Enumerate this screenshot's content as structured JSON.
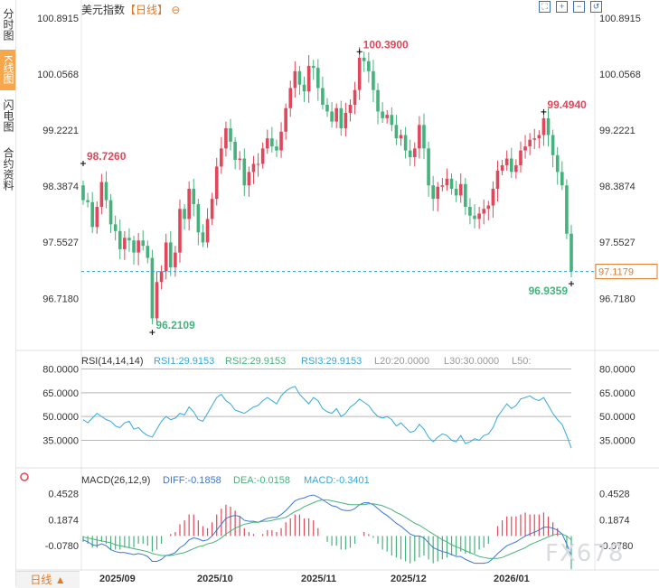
{
  "sidebar": {
    "tabs": [
      {
        "label": "分时图",
        "active": false
      },
      {
        "label": "K线图",
        "active": true
      },
      {
        "label": "闪电图",
        "active": false
      },
      {
        "label": "合约资料",
        "active": false
      }
    ]
  },
  "header": {
    "symbol": "美元指数",
    "period": "【日线】",
    "period_icon": "circle-minus-icon"
  },
  "tools": [
    "fit-icon",
    "zoom-in-icon",
    "zoom-out-icon",
    "restore-icon"
  ],
  "footer": {
    "period_button": "日线 ▲"
  },
  "watermark": "FX678",
  "colors": {
    "up": "#e0475a",
    "down": "#45b27c",
    "rsi": "#35a8dc",
    "diff": "#3a77d6",
    "dea": "#45b27c",
    "price_line": "#3a9ec9"
  },
  "chart_data": [
    {
      "type": "candlestick",
      "ylim": [
        96.2109,
        100.8915
      ],
      "yticks": [
        "100.8915",
        "100.0568",
        "99.2221",
        "98.3874",
        "97.5527",
        "96.7180"
      ],
      "xticks": [
        "2025/09",
        "2025/10",
        "2025/11",
        "2025/12",
        "2026/01"
      ],
      "annotations": {
        "high": "100.3900",
        "low": "96.2109",
        "start": "98.7260",
        "recent_high": "99.4940",
        "recent_low": "96.9359"
      },
      "last_price": "97.1179",
      "closes": [
        98.18,
        98.15,
        97.78,
        98.08,
        98.45,
        98.18,
        97.82,
        97.72,
        97.45,
        97.62,
        97.58,
        97.4,
        97.58,
        97.5,
        97.32,
        96.42,
        96.96,
        97.12,
        97.55,
        97.18,
        97.4,
        98.05,
        97.9,
        98.35,
        98.12,
        97.7,
        97.55,
        97.9,
        98.2,
        98.68,
        98.95,
        99.25,
        99.05,
        98.78,
        98.8,
        98.4,
        98.6,
        98.72,
        98.72,
        98.95,
        99.1,
        98.98,
        98.92,
        99.2,
        99.55,
        99.85,
        100.1,
        99.9,
        99.8,
        100.18,
        100.15,
        99.85,
        99.6,
        99.5,
        99.35,
        99.55,
        99.25,
        99.48,
        99.6,
        99.82,
        100.3,
        100.25,
        100.1,
        99.82,
        99.5,
        99.4,
        99.45,
        99.3,
        99.1,
        99.15,
        98.92,
        98.82,
        98.95,
        99.3,
        98.95,
        98.4,
        98.2,
        98.38,
        98.4,
        98.5,
        98.35,
        98.25,
        98.42,
        98.08,
        97.95,
        97.9,
        97.98,
        98.05,
        98.1,
        98.35,
        98.62,
        98.7,
        98.8,
        98.6,
        98.7,
        98.92,
        98.98,
        99.08,
        99.1,
        99.15,
        99.4,
        99.15,
        98.85,
        98.6,
        98.4,
        97.68,
        97.12
      ]
    },
    {
      "type": "line",
      "title": "RSI(14,14,14)",
      "legend": [
        "RSI1:29.9153",
        "RSI2:29.9153",
        "RSI3:29.9153",
        "L20:20.0000",
        "L30:30.0000",
        "L50:"
      ],
      "ylim": [
        25,
        82
      ],
      "yticks": [
        "80.0000",
        "65.0000",
        "50.0000",
        "35.0000"
      ],
      "series": [
        {
          "values": [
            48,
            46,
            49,
            52,
            50,
            48,
            47,
            44,
            43,
            46,
            47,
            42,
            43,
            40,
            38,
            37,
            42,
            47,
            50,
            48,
            49,
            52,
            51,
            56,
            53,
            48,
            47,
            52,
            57,
            62,
            64,
            60,
            58,
            54,
            53,
            52,
            54,
            56,
            57,
            60,
            62,
            60,
            58,
            63,
            66,
            68,
            69,
            64,
            61,
            58,
            62,
            60,
            55,
            53,
            52,
            55,
            50,
            52,
            56,
            58,
            61,
            59,
            57,
            53,
            50,
            49,
            50,
            48,
            44,
            46,
            43,
            40,
            41,
            45,
            42,
            37,
            34,
            37,
            39,
            38,
            35,
            34,
            38,
            33,
            34,
            36,
            35,
            38,
            39,
            43,
            50,
            54,
            58,
            55,
            57,
            61,
            62,
            63,
            61,
            60,
            62,
            57,
            52,
            48,
            45,
            38,
            30
          ]
        }
      ],
      "levels": [
        80,
        65,
        50,
        35
      ]
    },
    {
      "type": "line",
      "title": "MACD(26,12,9)",
      "legend": [
        "DIFF:-0.1858",
        "DEA:-0.0158",
        "MACD:-0.3401"
      ],
      "ylim": [
        -0.3,
        0.56
      ],
      "yticks": [
        "0.4528",
        "0.1874",
        "-0.0780"
      ],
      "series": [
        {
          "name": "DIFF",
          "values": [
            -0.02,
            -0.04,
            -0.07,
            -0.08,
            -0.06,
            -0.08,
            -0.12,
            -0.14,
            -0.15,
            -0.15,
            -0.16,
            -0.17,
            -0.16,
            -0.17,
            -0.19,
            -0.24,
            -0.24,
            -0.22,
            -0.18,
            -0.17,
            -0.15,
            -0.1,
            -0.07,
            -0.02,
            0.0,
            -0.01,
            -0.03,
            -0.02,
            0.02,
            0.08,
            0.14,
            0.2,
            0.22,
            0.23,
            0.22,
            0.18,
            0.17,
            0.17,
            0.16,
            0.18,
            0.2,
            0.21,
            0.21,
            0.24,
            0.28,
            0.33,
            0.38,
            0.4,
            0.41,
            0.43,
            0.44,
            0.42,
            0.39,
            0.36,
            0.33,
            0.32,
            0.29,
            0.28,
            0.28,
            0.3,
            0.34,
            0.36,
            0.36,
            0.34,
            0.3,
            0.26,
            0.23,
            0.19,
            0.15,
            0.12,
            0.08,
            0.04,
            0.02,
            0.02,
            0.0,
            -0.05,
            -0.1,
            -0.12,
            -0.14,
            -0.15,
            -0.17,
            -0.19,
            -0.19,
            -0.22,
            -0.24,
            -0.26,
            -0.26,
            -0.26,
            -0.25,
            -0.21,
            -0.16,
            -0.12,
            -0.08,
            -0.06,
            -0.04,
            -0.01,
            0.02,
            0.04,
            0.06,
            0.08,
            0.11,
            0.11,
            0.1,
            0.08,
            0.04,
            -0.06,
            -0.19
          ]
        },
        {
          "name": "DEA",
          "values": [
            0.01,
            0.0,
            -0.01,
            -0.02,
            -0.03,
            -0.04,
            -0.05,
            -0.07,
            -0.08,
            -0.09,
            -0.1,
            -0.11,
            -0.12,
            -0.13,
            -0.14,
            -0.16,
            -0.17,
            -0.18,
            -0.18,
            -0.18,
            -0.17,
            -0.16,
            -0.15,
            -0.13,
            -0.11,
            -0.09,
            -0.08,
            -0.06,
            -0.05,
            -0.03,
            0.0,
            0.04,
            0.07,
            0.1,
            0.12,
            0.14,
            0.15,
            0.16,
            0.16,
            0.17,
            0.17,
            0.18,
            0.19,
            0.2,
            0.21,
            0.24,
            0.27,
            0.29,
            0.32,
            0.34,
            0.36,
            0.38,
            0.39,
            0.39,
            0.38,
            0.37,
            0.36,
            0.35,
            0.34,
            0.34,
            0.34,
            0.34,
            0.35,
            0.35,
            0.34,
            0.33,
            0.31,
            0.29,
            0.26,
            0.24,
            0.21,
            0.18,
            0.15,
            0.13,
            0.1,
            0.07,
            0.04,
            0.01,
            -0.02,
            -0.04,
            -0.07,
            -0.09,
            -0.11,
            -0.13,
            -0.15,
            -0.17,
            -0.19,
            -0.2,
            -0.21,
            -0.21,
            -0.21,
            -0.2,
            -0.18,
            -0.16,
            -0.14,
            -0.12,
            -0.1,
            -0.07,
            -0.05,
            -0.03,
            -0.01,
            0.01,
            0.03,
            0.04,
            0.04,
            0.02,
            -0.02
          ]
        },
        {
          "name": "MACD",
          "type": "bar"
        }
      ]
    }
  ]
}
